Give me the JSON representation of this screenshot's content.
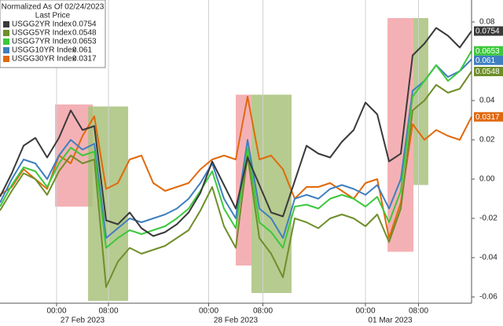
{
  "chart_data": {
    "type": "line",
    "legend_title": "Normalized As Of 02/24/2023",
    "legend_subtitle": "Last Price",
    "x": [
      0,
      1,
      2,
      3,
      4,
      5,
      6,
      7,
      8,
      9,
      10,
      11,
      12,
      13,
      14,
      15,
      16,
      17,
      18,
      19,
      20,
      21,
      22,
      23,
      24,
      25,
      26,
      27,
      28,
      29,
      30,
      31,
      32,
      33,
      34,
      35,
      36,
      37,
      38,
      39,
      40
    ],
    "xlim": [
      0,
      40
    ],
    "xticks": [
      {
        "value": 4.8,
        "label": "00:00"
      },
      {
        "value": 9.2,
        "label": "08:00"
      },
      {
        "value": 17.7,
        "label": "00:00"
      },
      {
        "value": 22.3,
        "label": "08:00"
      },
      {
        "value": 31,
        "label": "00:00"
      },
      {
        "value": 35.5,
        "label": "08:00"
      }
    ],
    "xdates": [
      {
        "value": 7,
        "label": "27 Feb 2023"
      },
      {
        "value": 20,
        "label": "28 Feb 2023"
      },
      {
        "value": 33.1,
        "label": "01 Mar 2023"
      }
    ],
    "ylim": [
      -0.0632,
      0.0912
    ],
    "yticks": [
      0.08,
      0.04,
      0.02,
      {
        "value": 0,
        "label": "0.00"
      },
      -0.02,
      -0.04,
      -0.06
    ],
    "grid": true,
    "legend": "top-left",
    "highlights": [
      {
        "x": [
          4.67,
          7.87
        ],
        "y": [
          -0.014,
          0.038
        ],
        "color": "#f2a3a8"
      },
      {
        "x": [
          7.47,
          10.87
        ],
        "y": [
          -0.062,
          0.037
        ],
        "color": "#a9c27d"
      },
      {
        "x": [
          20,
          21.33
        ],
        "y": [
          -0.044,
          0.043
        ],
        "color": "#f2a3a8"
      },
      {
        "x": [
          21.33,
          24.73
        ],
        "y": [
          -0.058,
          0.043
        ],
        "color": "#a9c27d"
      },
      {
        "x": [
          32.87,
          35.07
        ],
        "y": [
          -0.037,
          0.082
        ],
        "color": "#f2a3a8"
      },
      {
        "x": [
          35.07,
          36.33
        ],
        "y": [
          -0.003,
          0.082
        ],
        "color": "#a9c27d"
      }
    ],
    "series": [
      {
        "name": "USGG2YR Index",
        "color": "#3a3a3a",
        "values": [
          -0.009,
          0.003,
          0.017,
          0.021,
          0.011,
          0.021,
          0.035,
          0.025,
          0.027,
          -0.021,
          -0.023,
          -0.017,
          -0.025,
          -0.029,
          -0.027,
          -0.023,
          -0.017,
          -0.007,
          0.009,
          -0.003,
          -0.015,
          0.011,
          -0.003,
          -0.017,
          -0.019,
          -0.001,
          0.017,
          0.013,
          0.011,
          0.019,
          0.025,
          0.039,
          0.033,
          0.009,
          0.013,
          0.063,
          0.069,
          0.077,
          0.073,
          0.067,
          0.0754
        ]
      },
      {
        "name": "USGG5YR Index",
        "color": "#6f8e2a",
        "values": [
          -0.016,
          -0.006,
          0.003,
          0.0,
          -0.008,
          0.004,
          0.012,
          0.008,
          0.01,
          -0.055,
          -0.042,
          -0.035,
          -0.038,
          -0.036,
          -0.034,
          -0.03,
          -0.026,
          -0.016,
          -0.004,
          -0.024,
          -0.035,
          0.012,
          -0.03,
          -0.038,
          -0.05,
          -0.02,
          -0.022,
          -0.025,
          -0.02,
          -0.018,
          -0.02,
          -0.024,
          -0.018,
          -0.032,
          -0.015,
          0.035,
          0.04,
          0.048,
          0.044,
          0.046,
          0.0548
        ]
      },
      {
        "name": "USGG7YR Index",
        "color": "#3cc83c",
        "values": [
          -0.014,
          -0.003,
          0.006,
          0.004,
          -0.004,
          0.008,
          0.016,
          0.012,
          0.014,
          -0.035,
          -0.03,
          -0.026,
          -0.028,
          -0.026,
          -0.024,
          -0.02,
          -0.015,
          -0.006,
          0.004,
          -0.015,
          -0.025,
          0.016,
          -0.022,
          -0.027,
          -0.035,
          -0.014,
          -0.013,
          -0.015,
          -0.01,
          -0.008,
          -0.01,
          -0.014,
          -0.009,
          -0.022,
          -0.006,
          0.042,
          0.05,
          0.058,
          0.05,
          0.055,
          0.0653
        ]
      },
      {
        "name": "USGG10YR Index",
        "color": "#3f7fc0",
        "values": [
          -0.012,
          0.0,
          0.01,
          0.008,
          0.0,
          0.012,
          0.02,
          0.015,
          0.018,
          -0.03,
          -0.025,
          -0.02,
          -0.022,
          -0.02,
          -0.018,
          -0.015,
          -0.01,
          -0.002,
          0.008,
          -0.01,
          -0.02,
          0.02,
          -0.015,
          -0.02,
          -0.03,
          -0.01,
          -0.008,
          -0.01,
          -0.005,
          -0.003,
          -0.005,
          -0.008,
          -0.003,
          -0.015,
          0.0,
          0.045,
          0.05,
          0.058,
          0.052,
          0.055,
          0.061
        ]
      },
      {
        "name": "USGG30YR Index",
        "color": "#e0690c",
        "values": [
          -0.008,
          -0.004,
          0.005,
          0.0,
          -0.005,
          0.012,
          0.008,
          0.022,
          0.032,
          -0.005,
          -0.002,
          0.01,
          0.012,
          -0.002,
          -0.006,
          -0.004,
          -0.002,
          0.005,
          0.01,
          0.012,
          0.01,
          0.042,
          0.01,
          0.012,
          0.005,
          -0.01,
          -0.004,
          -0.004,
          -0.002,
          -0.006,
          -0.01,
          -0.002,
          0.0,
          -0.03,
          -0.012,
          0.028,
          0.02,
          0.025,
          0.022,
          0.02,
          0.0317
        ]
      }
    ]
  }
}
